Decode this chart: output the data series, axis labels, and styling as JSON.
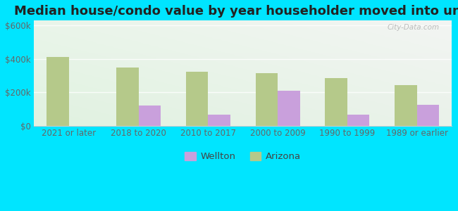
{
  "title": "Median house/condo value by year householder moved into unit",
  "categories": [
    "2021 or later",
    "2018 to 2020",
    "2010 to 2017",
    "2000 to 2009",
    "1990 to 1999",
    "1989 or earlier"
  ],
  "wellton": [
    0,
    120000,
    65000,
    210000,
    65000,
    125000
  ],
  "arizona": [
    410000,
    350000,
    325000,
    315000,
    285000,
    245000
  ],
  "wellton_color": "#c9a0dc",
  "arizona_color": "#b5c98a",
  "background_outer": "#00e5ff",
  "ytick_vals": [
    0,
    200000,
    400000,
    600000
  ],
  "ylim": [
    0,
    630000
  ],
  "bar_width": 0.32,
  "legend_labels": [
    "Wellton",
    "Arizona"
  ],
  "watermark": "City-Data.com",
  "title_fontsize": 13,
  "tick_fontsize": 8.5,
  "legend_fontsize": 9.5
}
